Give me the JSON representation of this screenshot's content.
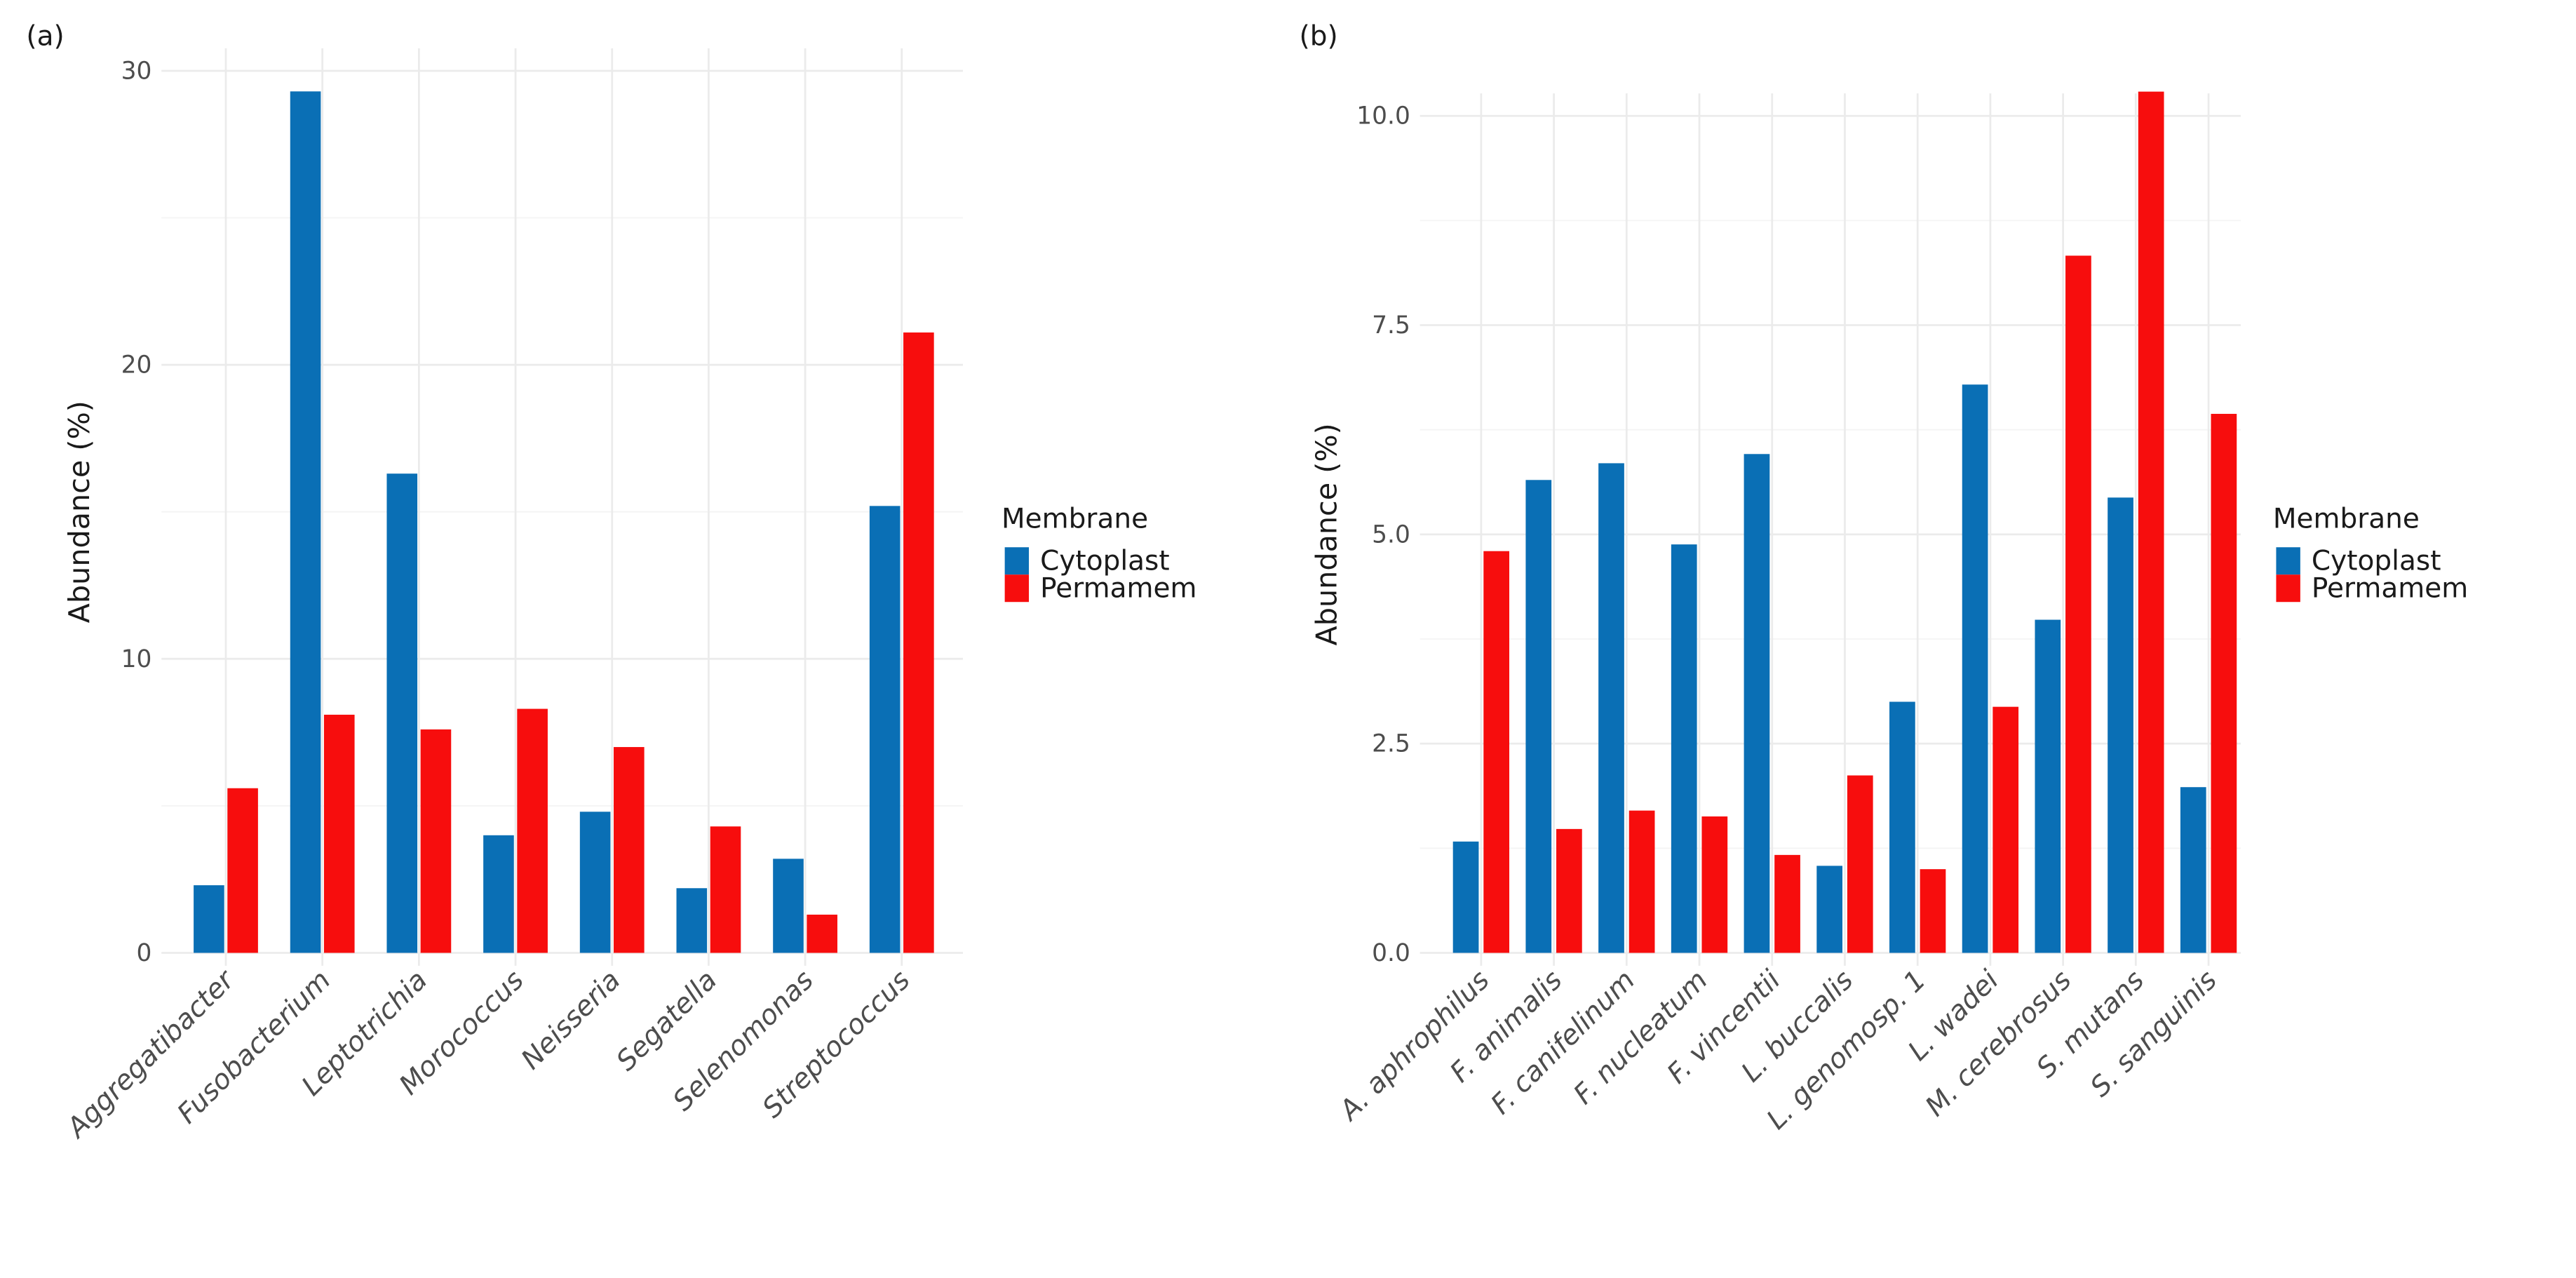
{
  "colors": {
    "Cytoplast": "#0a6fb5",
    "Permamem": "#f70d0d"
  },
  "chart_data": [
    {
      "type": "bar",
      "panel_label": "(a)",
      "title": "",
      "xlabel": "",
      "ylabel": "Abundance (%)",
      "ylim": [
        0,
        30
      ],
      "yticks": [
        0,
        10,
        20,
        30
      ],
      "ytick_labels": [
        "0",
        "10",
        "20",
        "30"
      ],
      "grid": true,
      "legend": {
        "title": "Membrane",
        "placement": "right",
        "entries": [
          "Cytoplast",
          "Permamem"
        ]
      },
      "categories": [
        "Aggregatibacter",
        "Fusobacterium",
        "Leptotrichia",
        "Morococcus",
        "Neisseria",
        "Segatella",
        "Selenomonas",
        "Streptococcus"
      ],
      "series": [
        {
          "name": "Cytoplast",
          "values": [
            2.3,
            29.3,
            16.3,
            4.0,
            4.8,
            2.2,
            3.2,
            15.2
          ]
        },
        {
          "name": "Permamem",
          "values": [
            5.6,
            8.1,
            7.6,
            8.3,
            7.0,
            4.3,
            1.3,
            21.1
          ]
        }
      ]
    },
    {
      "type": "bar",
      "panel_label": "(b)",
      "title": "",
      "xlabel": "",
      "ylabel": "Abundance (%)",
      "ylim": [
        0,
        10.3
      ],
      "yticks": [
        0,
        2.5,
        5,
        7.5,
        10
      ],
      "ytick_labels": [
        "0.0",
        "2.5",
        "5.0",
        "7.5",
        "10.0"
      ],
      "grid": true,
      "legend": {
        "title": "Membrane",
        "placement": "right",
        "entries": [
          "Cytoplast",
          "Permamem"
        ]
      },
      "categories": [
        "A. aphrophilus",
        "F. animalis",
        "F. canifelinum",
        "F. nucleatum",
        "F. vincentii",
        "L. buccalis",
        "L. genomosp. 1",
        "L. wadei",
        "M. cerebrosus",
        "S. mutans",
        "S. sanguinis"
      ],
      "series": [
        {
          "name": "Cytoplast",
          "values": [
            1.33,
            5.65,
            5.85,
            4.88,
            5.96,
            1.04,
            3.0,
            6.79,
            3.98,
            5.44,
            1.98
          ]
        },
        {
          "name": "Permamem",
          "values": [
            4.8,
            1.48,
            1.7,
            1.63,
            1.17,
            2.12,
            1.0,
            2.94,
            8.33,
            10.29,
            6.44
          ]
        }
      ]
    }
  ]
}
